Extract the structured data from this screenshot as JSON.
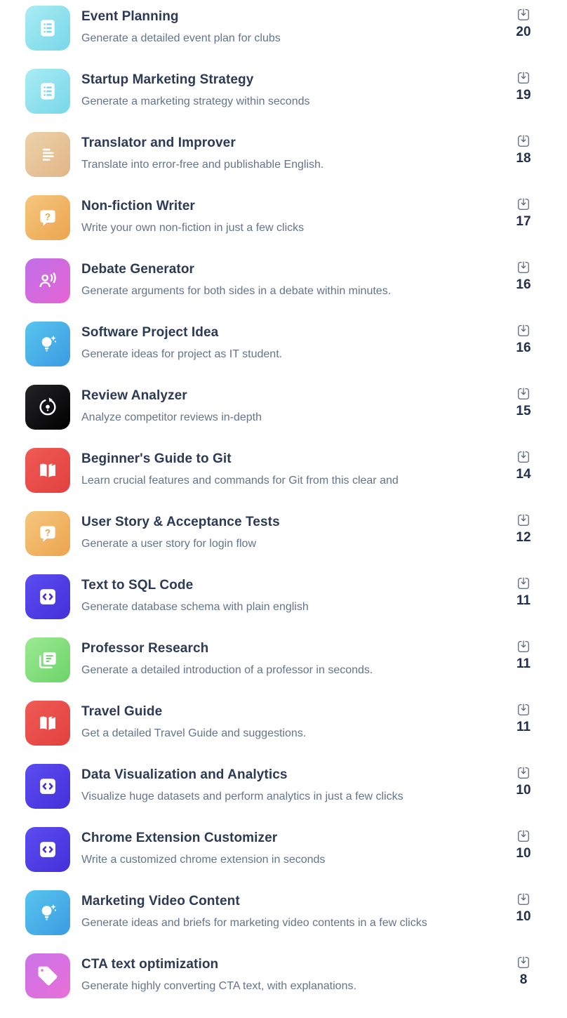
{
  "page": {
    "background_color": "#ffffff",
    "title_color": "#2d3a55",
    "description_color": "#64748b",
    "count_color": "#22304d",
    "download_icon_name": "download-tray-icon"
  },
  "items": [
    {
      "title": "Event Planning",
      "description": "Generate a detailed event plan for clubs",
      "downloads": "20",
      "icon": {
        "glyph": "list-card-icon",
        "gradient_from": "#a9ecf4",
        "gradient_to": "#77d7e8"
      }
    },
    {
      "title": "Startup Marketing Strategy",
      "description": "Generate a marketing strategy within seconds",
      "downloads": "19",
      "icon": {
        "glyph": "list-card-icon",
        "gradient_from": "#a9ecf4",
        "gradient_to": "#77d7e8"
      }
    },
    {
      "title": "Translator and Improver",
      "description": "Translate into error-free and publishable English.",
      "downloads": "18",
      "icon": {
        "glyph": "text-lines-icon",
        "gradient_from": "#edd2a9",
        "gradient_to": "#e0b586"
      }
    },
    {
      "title": "Non-fiction Writer",
      "description": "Write your own non-fiction in just a few clicks",
      "downloads": "17",
      "icon": {
        "glyph": "question-bubble-icon",
        "gradient_from": "#f5c77f",
        "gradient_to": "#eca44d"
      }
    },
    {
      "title": "Debate Generator",
      "description": "Generate arguments for both sides in a debate within minutes.",
      "downloads": "16",
      "icon": {
        "glyph": "voice-speaker-icon",
        "gradient_from": "#c06fe9",
        "gradient_to": "#e565d3"
      }
    },
    {
      "title": "Software Project Idea",
      "description": "Generate ideas for project as IT student.",
      "downloads": "16",
      "icon": {
        "glyph": "bulb-sparkle-icon",
        "gradient_from": "#58c5ee",
        "gradient_to": "#3b9be2"
      }
    },
    {
      "title": "Review Analyzer",
      "description": "Analyze competitor reviews in-depth",
      "downloads": "15",
      "icon": {
        "glyph": "refresh-bulb-icon",
        "gradient_from": "#242428",
        "gradient_to": "#000000"
      }
    },
    {
      "title": "Beginner's Guide to Git",
      "description": "Learn crucial features and commands for Git from this clear and",
      "downloads": "14",
      "icon": {
        "glyph": "open-book-icon",
        "gradient_from": "#ef5a55",
        "gradient_to": "#e2413e"
      }
    },
    {
      "title": "User Story & Acceptance Tests",
      "description": "Generate a user story for login flow",
      "downloads": "12",
      "icon": {
        "glyph": "question-bubble-icon",
        "gradient_from": "#f5c77f",
        "gradient_to": "#eca44d"
      }
    },
    {
      "title": "Text to SQL Code",
      "description": "Generate database schema with plain english",
      "downloads": "11",
      "icon": {
        "glyph": "code-brackets-icon",
        "gradient_from": "#5b4df1",
        "gradient_to": "#4430d9"
      }
    },
    {
      "title": "Professor Research",
      "description": "Generate a detailed introduction of a professor in seconds.",
      "downloads": "11",
      "icon": {
        "glyph": "note-copy-icon",
        "gradient_from": "#9cea92",
        "gradient_to": "#6cd368"
      }
    },
    {
      "title": "Travel Guide",
      "description": "Get a detailed Travel Guide and suggestions.",
      "downloads": "11",
      "icon": {
        "glyph": "open-book-icon",
        "gradient_from": "#ef5a55",
        "gradient_to": "#e2413e"
      }
    },
    {
      "title": "Data Visualization and Analytics",
      "description": "Visualize huge datasets and perform analytics in just a few clicks",
      "downloads": "10",
      "icon": {
        "glyph": "code-brackets-icon",
        "gradient_from": "#5b4df1",
        "gradient_to": "#4430d9"
      }
    },
    {
      "title": "Chrome Extension Customizer",
      "description": "Write a customized chrome extension in seconds",
      "downloads": "10",
      "icon": {
        "glyph": "code-brackets-icon",
        "gradient_from": "#5b4df1",
        "gradient_to": "#4430d9"
      }
    },
    {
      "title": "Marketing Video Content",
      "description": "Generate ideas and briefs for marketing video contents in a few clicks",
      "downloads": "10",
      "icon": {
        "glyph": "bulb-sparkle-icon",
        "gradient_from": "#58c5ee",
        "gradient_to": "#3b9be2"
      }
    },
    {
      "title": "CTA text optimization",
      "description": "Generate highly converting CTA text, with explanations.",
      "downloads": "8",
      "icon": {
        "glyph": "tag-icon",
        "gradient_from": "#ca73e9",
        "gradient_to": "#e96fd6"
      }
    }
  ]
}
